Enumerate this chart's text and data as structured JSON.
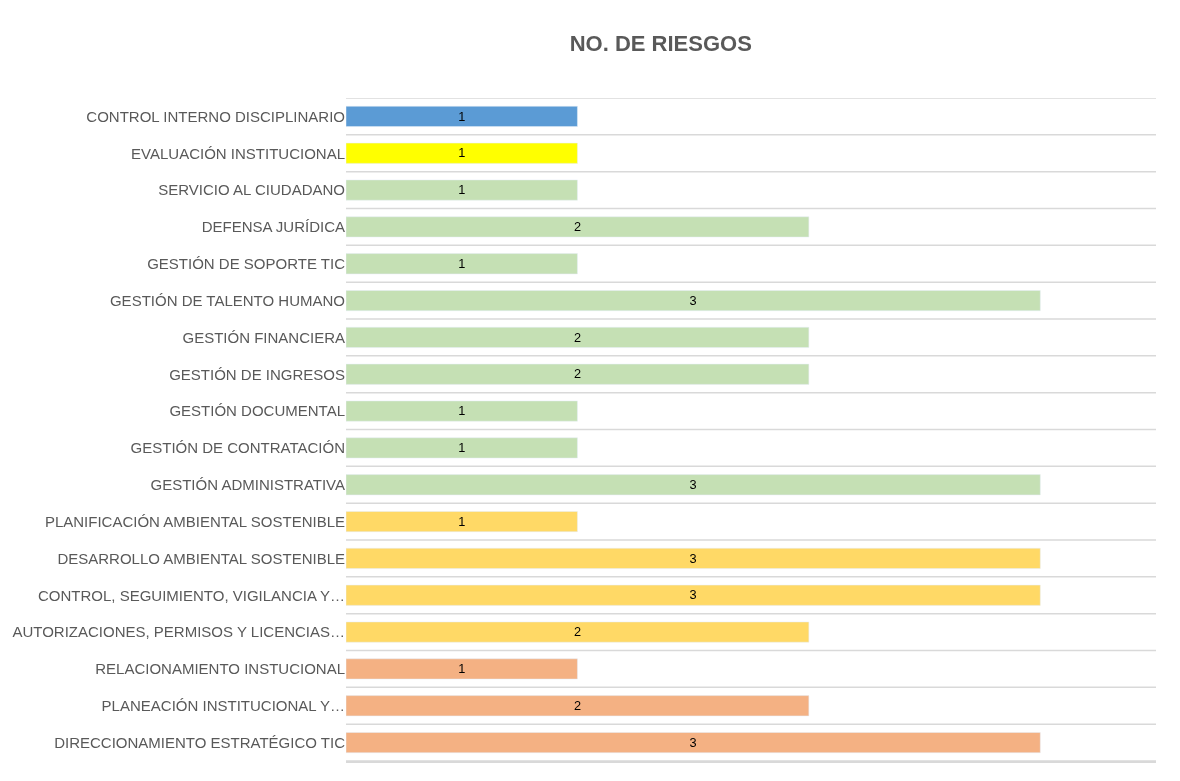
{
  "chart_data": {
    "type": "bar",
    "orientation": "horizontal",
    "title": "NO. DE RIESGOS",
    "categories": [
      "CONTROL INTERNO DISCIPLINARIO",
      "EVALUACIÓN INSTITUCIONAL",
      "SERVICIO AL CIUDADANO",
      "DEFENSA JURÍDICA",
      "GESTIÓN DE SOPORTE TIC",
      "GESTIÓN DE TALENTO HUMANO",
      "GESTIÓN FINANCIERA",
      "GESTIÓN DE INGRESOS",
      "GESTIÓN DOCUMENTAL",
      "GESTIÓN DE CONTRATACIÓN",
      "GESTIÓN ADMINISTRATIVA",
      "PLANIFICACIÓN AMBIENTAL SOSTENIBLE",
      "DESARROLLO AMBIENTAL SOSTENIBLE",
      "CONTROL, SEGUIMIENTO, VIGILANCIA Y…",
      "AUTORIZACIONES, PERMISOS Y LICENCIAS…",
      "RELACIONAMIENTO INSTUCIONAL",
      "PLANEACIÓN INSTITUCIONAL Y…",
      "DIRECCIONAMIENTO ESTRATÉGICO TIC"
    ],
    "values": [
      1,
      1,
      1,
      2,
      1,
      3,
      2,
      2,
      1,
      1,
      3,
      1,
      3,
      3,
      2,
      1,
      2,
      3
    ],
    "colors": [
      "#5b9bd5",
      "#ffff00",
      "#c5e0b4",
      "#c5e0b4",
      "#c5e0b4",
      "#c5e0b4",
      "#c5e0b4",
      "#c5e0b4",
      "#c5e0b4",
      "#c5e0b4",
      "#c5e0b4",
      "#ffd966",
      "#ffd966",
      "#ffd966",
      "#ffd966",
      "#f4b183",
      "#f4b183",
      "#f4b183"
    ],
    "xlim": [
      0,
      3.5
    ],
    "data_labels": true,
    "grid": "y",
    "tick_labels": "y",
    "legend": false
  }
}
